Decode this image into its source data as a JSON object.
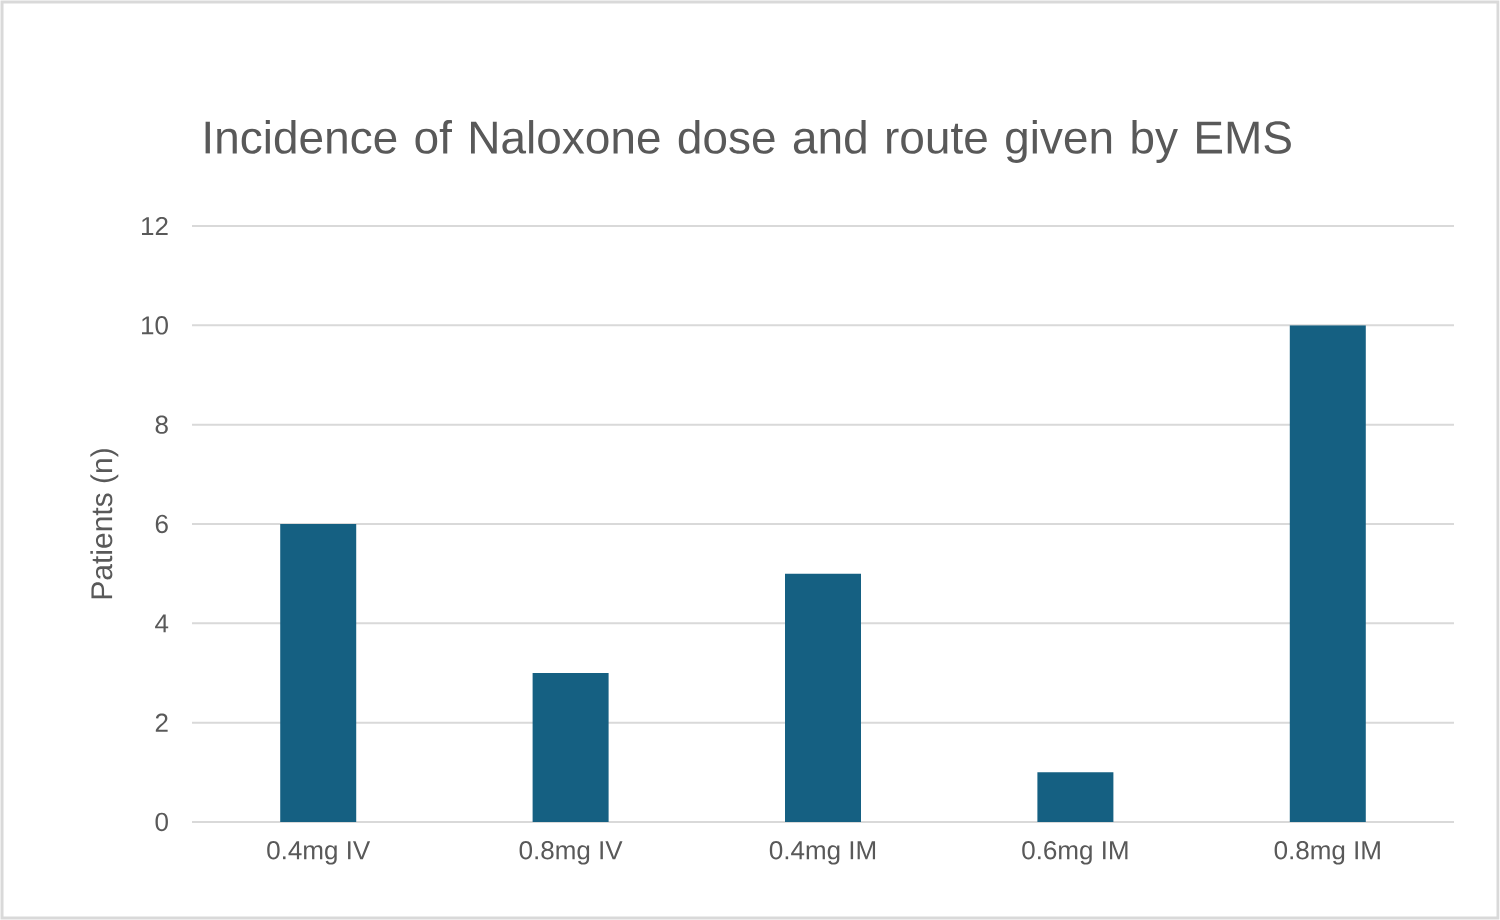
{
  "chart_data": {
    "type": "bar",
    "title": "Incidence of Naloxone dose and route given by EMS",
    "ylabel": "Patients (n)",
    "categories": [
      "0.4mg IV",
      "0.8mg IV",
      "0.4mg IM",
      "0.6mg IM",
      "0.8mg IM"
    ],
    "values": [
      6,
      3,
      5,
      1,
      10
    ],
    "color": "#156082",
    "ylim": [
      0,
      12
    ],
    "yticks": [
      0,
      2,
      4,
      6,
      8,
      10,
      12
    ],
    "grid": "y"
  }
}
